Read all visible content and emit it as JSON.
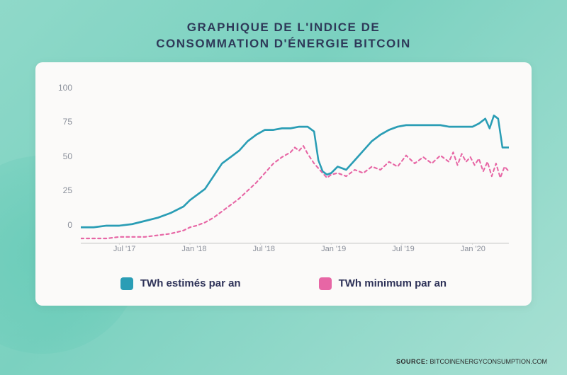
{
  "title_line1": "GRAPHIQUE DE L'INDICE DE",
  "title_line2": "CONSOMMATION D'ÉNERGIE BITCOIN",
  "source_label": "SOURCE:",
  "source_value": "BITCOINENERGYCONSUMPTION.COM",
  "chart": {
    "type": "line",
    "background_color": "#fbfaf9",
    "page_bg_gradient": [
      "#8fd9c9",
      "#7bd1c0",
      "#a8e0d3"
    ],
    "ylim": [
      0,
      100
    ],
    "yticks": [
      100,
      75,
      50,
      25,
      0
    ],
    "xticks": [
      {
        "pos": 0.09,
        "label": "Jul '17"
      },
      {
        "pos": 0.255,
        "label": "Jan '18"
      },
      {
        "pos": 0.42,
        "label": "Jul '18"
      },
      {
        "pos": 0.585,
        "label": "Jan '19"
      },
      {
        "pos": 0.75,
        "label": "Jul '19"
      },
      {
        "pos": 0.915,
        "label": "Jan '20"
      }
    ],
    "grid_color": "#d8d8d8",
    "axis_color": "#8a8f9a",
    "tick_fontsize": 12,
    "series": [
      {
        "name": "estimated",
        "label": "TWh estimés par an",
        "color": "#2a9db5",
        "line_width": 2.5,
        "dash": "none",
        "data": [
          [
            0.0,
            10
          ],
          [
            0.03,
            10
          ],
          [
            0.06,
            11
          ],
          [
            0.09,
            11
          ],
          [
            0.12,
            12
          ],
          [
            0.15,
            14
          ],
          [
            0.18,
            16
          ],
          [
            0.21,
            19
          ],
          [
            0.24,
            23
          ],
          [
            0.255,
            27
          ],
          [
            0.27,
            30
          ],
          [
            0.29,
            34
          ],
          [
            0.31,
            42
          ],
          [
            0.33,
            50
          ],
          [
            0.35,
            54
          ],
          [
            0.37,
            58
          ],
          [
            0.39,
            64
          ],
          [
            0.41,
            68
          ],
          [
            0.43,
            71
          ],
          [
            0.45,
            71
          ],
          [
            0.47,
            72
          ],
          [
            0.49,
            72
          ],
          [
            0.51,
            73
          ],
          [
            0.53,
            73
          ],
          [
            0.545,
            70
          ],
          [
            0.555,
            52
          ],
          [
            0.565,
            45
          ],
          [
            0.575,
            43
          ],
          [
            0.585,
            44
          ],
          [
            0.6,
            48
          ],
          [
            0.62,
            46
          ],
          [
            0.64,
            52
          ],
          [
            0.66,
            58
          ],
          [
            0.68,
            64
          ],
          [
            0.7,
            68
          ],
          [
            0.72,
            71
          ],
          [
            0.74,
            73
          ],
          [
            0.76,
            74
          ],
          [
            0.78,
            74
          ],
          [
            0.8,
            74
          ],
          [
            0.82,
            74
          ],
          [
            0.84,
            74
          ],
          [
            0.86,
            73
          ],
          [
            0.88,
            73
          ],
          [
            0.9,
            73
          ],
          [
            0.915,
            73
          ],
          [
            0.93,
            75
          ],
          [
            0.945,
            78
          ],
          [
            0.955,
            72
          ],
          [
            0.965,
            80
          ],
          [
            0.975,
            78
          ],
          [
            0.985,
            60
          ],
          [
            1.0,
            60
          ]
        ]
      },
      {
        "name": "minimum",
        "label": "TWh minimum par an",
        "color": "#e766a5",
        "line_width": 2,
        "dash": "4 4",
        "data": [
          [
            0.0,
            3
          ],
          [
            0.03,
            3
          ],
          [
            0.06,
            3
          ],
          [
            0.09,
            4
          ],
          [
            0.12,
            4
          ],
          [
            0.15,
            4
          ],
          [
            0.18,
            5
          ],
          [
            0.21,
            6
          ],
          [
            0.24,
            8
          ],
          [
            0.255,
            10
          ],
          [
            0.27,
            11
          ],
          [
            0.29,
            13
          ],
          [
            0.31,
            16
          ],
          [
            0.33,
            20
          ],
          [
            0.35,
            24
          ],
          [
            0.37,
            28
          ],
          [
            0.39,
            33
          ],
          [
            0.41,
            38
          ],
          [
            0.43,
            44
          ],
          [
            0.45,
            50
          ],
          [
            0.47,
            54
          ],
          [
            0.49,
            57
          ],
          [
            0.5,
            60
          ],
          [
            0.51,
            58
          ],
          [
            0.52,
            61
          ],
          [
            0.53,
            56
          ],
          [
            0.545,
            50
          ],
          [
            0.555,
            47
          ],
          [
            0.565,
            44
          ],
          [
            0.575,
            41
          ],
          [
            0.585,
            43
          ],
          [
            0.6,
            44
          ],
          [
            0.62,
            42
          ],
          [
            0.64,
            46
          ],
          [
            0.66,
            44
          ],
          [
            0.68,
            48
          ],
          [
            0.7,
            46
          ],
          [
            0.72,
            51
          ],
          [
            0.74,
            48
          ],
          [
            0.76,
            55
          ],
          [
            0.78,
            50
          ],
          [
            0.8,
            54
          ],
          [
            0.82,
            50
          ],
          [
            0.84,
            55
          ],
          [
            0.86,
            51
          ],
          [
            0.87,
            57
          ],
          [
            0.88,
            49
          ],
          [
            0.89,
            56
          ],
          [
            0.9,
            51
          ],
          [
            0.91,
            54
          ],
          [
            0.92,
            49
          ],
          [
            0.93,
            53
          ],
          [
            0.94,
            45
          ],
          [
            0.95,
            51
          ],
          [
            0.96,
            42
          ],
          [
            0.97,
            50
          ],
          [
            0.98,
            41
          ],
          [
            0.99,
            48
          ],
          [
            1.0,
            45
          ]
        ]
      }
    ],
    "legend": {
      "swatch_size": 18,
      "label_color": "#2e3258",
      "label_fontsize": 15
    }
  }
}
